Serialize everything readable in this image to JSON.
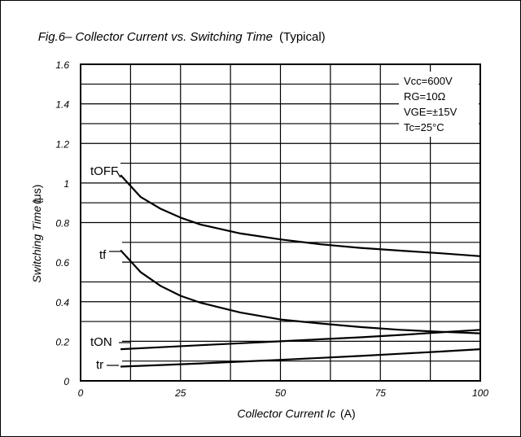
{
  "chart_data": {
    "type": "line",
    "title": "Fig.6– Collector Current vs. Switching Time",
    "title_suffix": "(Typical)",
    "xlabel": "Collector Current Ic",
    "xlabel_unit": "(A)",
    "ylabel": "Switching Time t",
    "ylabel_unit": "(μs)",
    "xlim": [
      0,
      100
    ],
    "ylim": [
      0,
      1.6
    ],
    "x_ticks": [
      0,
      25,
      50,
      75,
      100
    ],
    "x_tick_labels": [
      "0",
      "25",
      "50",
      "75",
      "100"
    ],
    "y_ticks": [
      0,
      0.2,
      0.4,
      0.6,
      0.8,
      1,
      1.2,
      1.4,
      1.6
    ],
    "y_tick_labels": [
      "0",
      "0.2",
      "0.4",
      "0.6",
      "0.8",
      "1",
      "1.2",
      "1.4",
      "1.6"
    ],
    "grid": true,
    "conditions": [
      "Vcc=600V",
      "RG=10Ω",
      "VGE=±15V",
      "Tc=25°C"
    ],
    "series": [
      {
        "name": "tOFF",
        "color": "#000000",
        "x": [
          10,
          15,
          20,
          25,
          30,
          40,
          50,
          60,
          70,
          80,
          90,
          100
        ],
        "y": [
          1.04,
          0.93,
          0.87,
          0.825,
          0.79,
          0.745,
          0.715,
          0.69,
          0.672,
          0.658,
          0.645,
          0.63
        ]
      },
      {
        "name": "tf",
        "color": "#000000",
        "x": [
          10,
          15,
          20,
          25,
          30,
          40,
          50,
          60,
          70,
          80,
          90,
          100
        ],
        "y": [
          0.66,
          0.55,
          0.48,
          0.43,
          0.395,
          0.345,
          0.31,
          0.29,
          0.272,
          0.258,
          0.248,
          0.24
        ]
      },
      {
        "name": "tON",
        "color": "#000000",
        "x": [
          10,
          20,
          30,
          40,
          50,
          60,
          70,
          80,
          90,
          100
        ],
        "y": [
          0.16,
          0.17,
          0.18,
          0.19,
          0.2,
          0.21,
          0.22,
          0.232,
          0.245,
          0.258
        ]
      },
      {
        "name": "tr",
        "color": "#000000",
        "x": [
          10,
          20,
          30,
          40,
          50,
          60,
          70,
          80,
          90,
          100
        ],
        "y": [
          0.072,
          0.08,
          0.088,
          0.097,
          0.106,
          0.116,
          0.126,
          0.137,
          0.148,
          0.16
        ]
      }
    ]
  }
}
